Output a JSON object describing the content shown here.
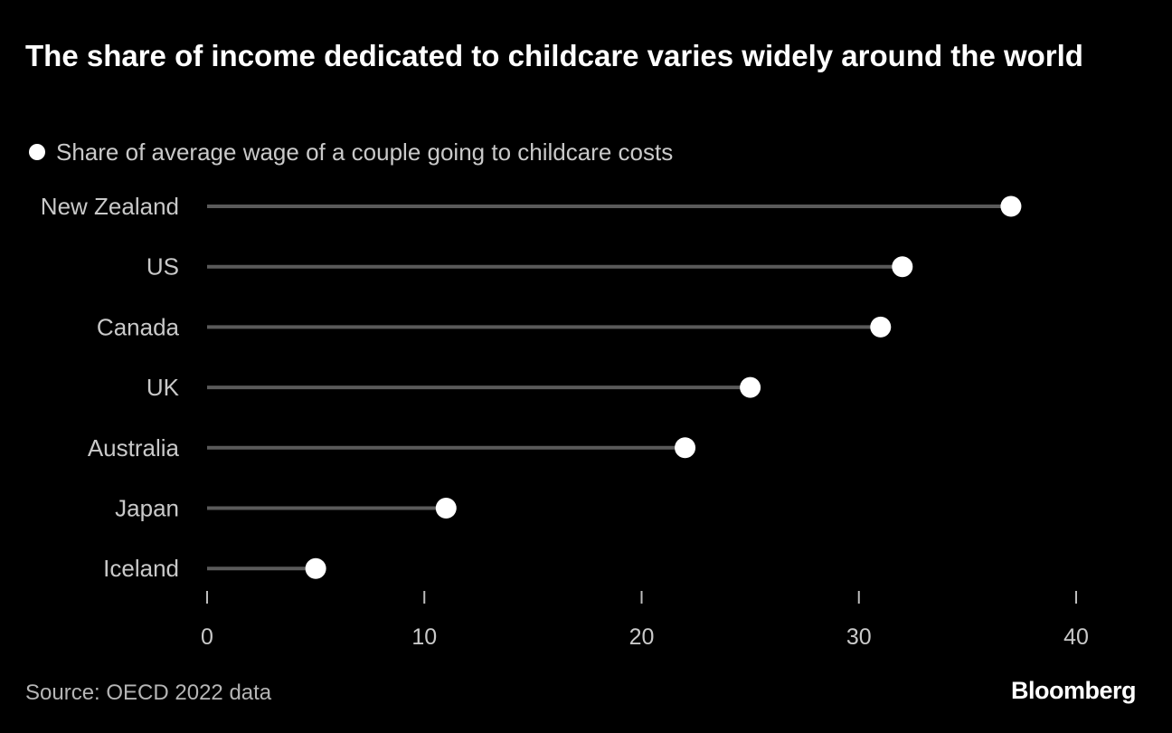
{
  "title": "The share of income dedicated to childcare varies widely around the world",
  "source": "Source: OECD 2022 data",
  "brand": "Bloomberg",
  "colors": {
    "background": "#000000",
    "stem": "#5a5a5a",
    "dot": "#ffffff",
    "label": "#c9c9c9"
  },
  "chart_data": {
    "type": "lollipop",
    "orientation": "horizontal",
    "categories": [
      "New Zealand",
      "US",
      "Canada",
      "UK",
      "Australia",
      "Japan",
      "Iceland"
    ],
    "series": [
      {
        "name": "Share of average wage of a couple going to childcare costs",
        "values": [
          37,
          32,
          31,
          25,
          22,
          11,
          5
        ]
      }
    ],
    "xlim": [
      0,
      40
    ],
    "xticks": [
      0,
      10,
      20,
      30,
      40
    ],
    "grid": false,
    "legend_position": "top-left"
  }
}
